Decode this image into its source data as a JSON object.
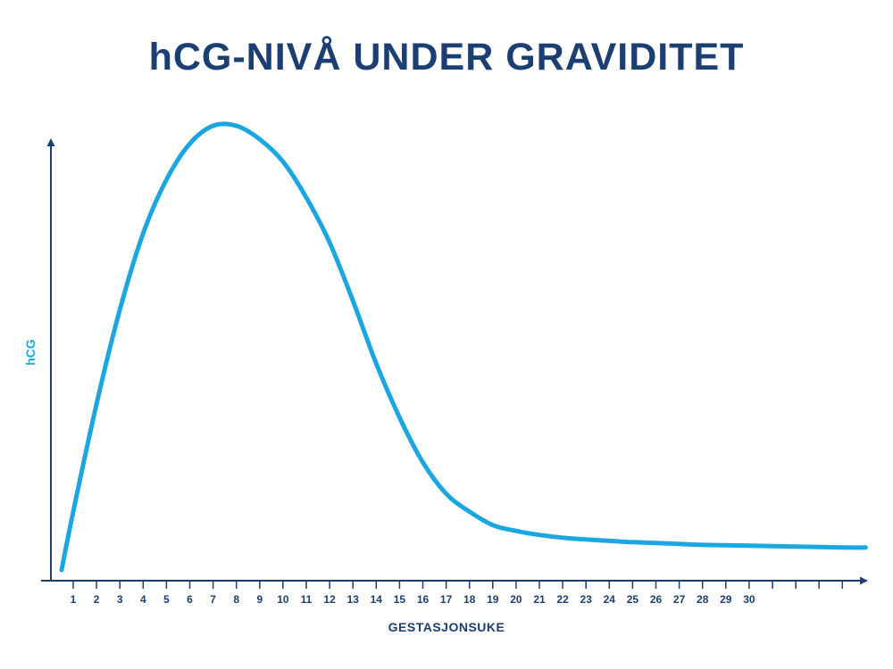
{
  "chart_data": {
    "type": "line",
    "title": "hCG-NIVÅ UNDER GRAVIDITET",
    "xlabel": "GESTASJONSUKE",
    "ylabel": "hCG",
    "x_ticks": [
      "1",
      "2",
      "3",
      "4",
      "5",
      "6",
      "7",
      "8",
      "9",
      "10",
      "11",
      "12",
      "13",
      "14",
      "15",
      "16",
      "17",
      "18",
      "19",
      "20",
      "21",
      "22",
      "23",
      "24",
      "25",
      "26",
      "27",
      "28",
      "29",
      "30"
    ],
    "xlim": [
      0,
      35
    ],
    "ylim": [
      0,
      100
    ],
    "grid": false,
    "series": [
      {
        "values": [
          [
            0.5,
            1
          ],
          [
            1,
            14
          ],
          [
            2,
            38
          ],
          [
            3,
            59
          ],
          [
            4,
            76
          ],
          [
            5,
            88
          ],
          [
            6,
            96
          ],
          [
            7,
            100
          ],
          [
            8,
            100
          ],
          [
            9,
            97
          ],
          [
            10,
            92
          ],
          [
            11,
            84
          ],
          [
            12,
            74
          ],
          [
            13,
            61
          ],
          [
            14,
            47
          ],
          [
            15,
            35
          ],
          [
            16,
            25
          ],
          [
            17,
            18
          ],
          [
            18,
            14
          ],
          [
            19,
            11
          ],
          [
            20,
            9.7
          ],
          [
            21,
            8.8
          ],
          [
            22,
            8.2
          ],
          [
            23,
            7.8
          ],
          [
            24,
            7.5
          ],
          [
            25,
            7.2
          ],
          [
            26,
            7.0
          ],
          [
            27,
            6.8
          ],
          [
            28,
            6.6
          ],
          [
            29,
            6.5
          ],
          [
            30,
            6.4
          ],
          [
            31,
            6.3
          ],
          [
            32,
            6.2
          ],
          [
            33,
            6.1
          ],
          [
            34,
            6.0
          ],
          [
            35,
            6.0
          ]
        ]
      }
    ],
    "colors": {
      "curve": "#1ba6e2",
      "axis": "#1b3f72",
      "title": "#1b3f72"
    }
  }
}
